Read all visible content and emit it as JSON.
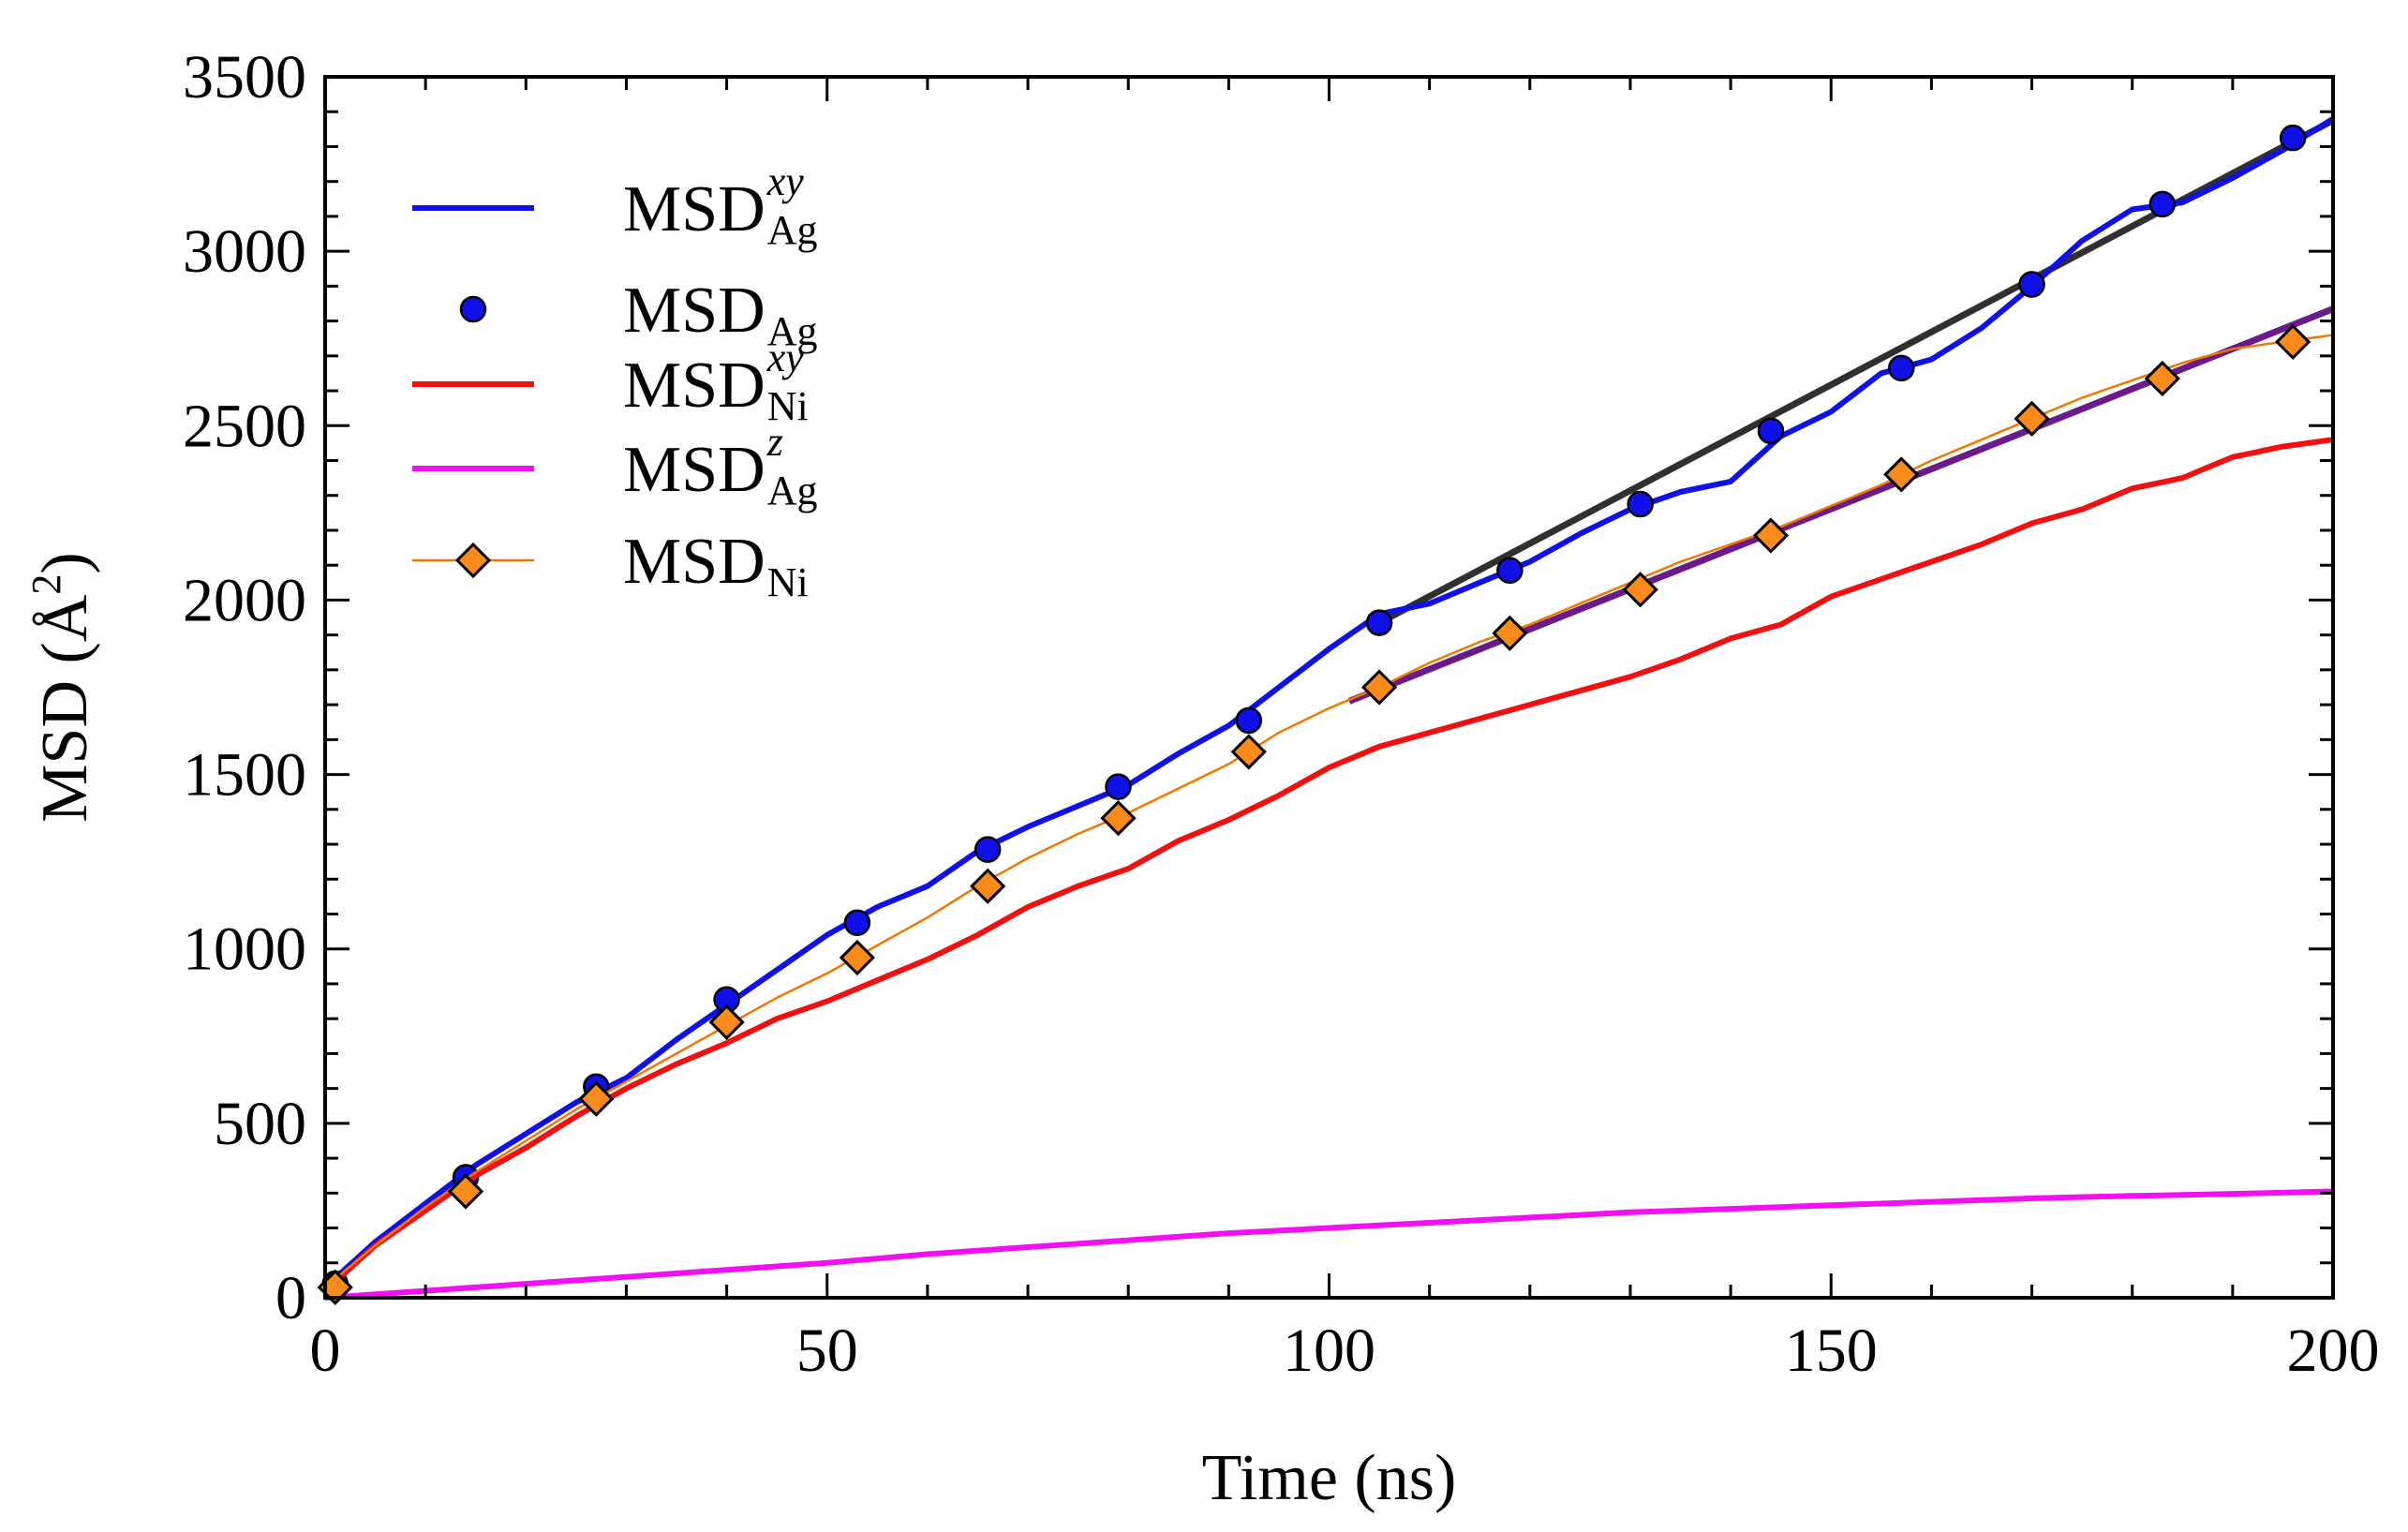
{
  "chart_data": {
    "type": "line",
    "xlabel": "Time (ns)",
    "ylabel": "MSD (Å",
    "ylabel_sup": "2",
    "ylabel_close": ")",
    "xlim": [
      0,
      200
    ],
    "ylim": [
      0,
      3500
    ],
    "x_ticks": [
      0,
      50,
      100,
      150,
      200
    ],
    "y_ticks": [
      0,
      500,
      1000,
      1500,
      2000,
      2500,
      3000,
      3500
    ],
    "x_tick_labels": [
      "0",
      "50",
      "100",
      "150",
      "200"
    ],
    "y_tick_labels": [
      "0",
      "500",
      "1000",
      "1500",
      "2000",
      "2500",
      "3000",
      "3500"
    ],
    "legend_position": "top-left",
    "series": [
      {
        "id": "msd_ag_xy",
        "name": "MSD",
        "sub": "Ag",
        "sup": "xy",
        "style": "line",
        "color": "#1010e8",
        "x": [
          0,
          5,
          10,
          15,
          20,
          25,
          30,
          35,
          40,
          45,
          50,
          55,
          60,
          65,
          70,
          75,
          80,
          85,
          90,
          95,
          100,
          105,
          110,
          115,
          120,
          125,
          130,
          135,
          140,
          145,
          150,
          155,
          160,
          165,
          170,
          175,
          180,
          185,
          190,
          195,
          200
        ],
        "y": [
          30,
          160,
          270,
          380,
          470,
          560,
          630,
          740,
          840,
          940,
          1040,
          1120,
          1180,
          1280,
          1350,
          1410,
          1470,
          1560,
          1640,
          1750,
          1860,
          1960,
          1990,
          2050,
          2110,
          2190,
          2260,
          2310,
          2340,
          2470,
          2540,
          2650,
          2690,
          2780,
          2900,
          3030,
          3120,
          3140,
          3210,
          3290,
          3380
        ]
      },
      {
        "id": "msd_ag",
        "name": "MSD",
        "sub": "Ag",
        "sup": "",
        "style": "markers",
        "marker": "circle",
        "color": "#1010e8",
        "x": [
          1,
          14,
          27,
          40,
          53,
          66,
          79,
          92,
          105,
          118,
          131,
          144,
          157,
          170,
          183,
          196
        ],
        "y": [
          40,
          345,
          605,
          855,
          1075,
          1285,
          1465,
          1655,
          1935,
          2085,
          2275,
          2485,
          2665,
          2905,
          3135,
          3325
        ]
      },
      {
        "id": "msd_ni_xy",
        "name": "MSD",
        "sub": "Ni",
        "sup": "xy",
        "style": "line",
        "color": "#f01010",
        "x": [
          0,
          5,
          10,
          15,
          20,
          25,
          30,
          35,
          40,
          45,
          50,
          55,
          60,
          65,
          70,
          75,
          80,
          85,
          90,
          95,
          100,
          105,
          110,
          115,
          120,
          125,
          130,
          135,
          140,
          145,
          150,
          155,
          160,
          165,
          170,
          175,
          180,
          185,
          190,
          195,
          200
        ],
        "y": [
          20,
          150,
          250,
          350,
          430,
          520,
          600,
          670,
          730,
          800,
          850,
          910,
          970,
          1040,
          1120,
          1180,
          1230,
          1310,
          1370,
          1440,
          1520,
          1580,
          1620,
          1660,
          1700,
          1740,
          1780,
          1830,
          1890,
          1930,
          2010,
          2060,
          2110,
          2160,
          2220,
          2260,
          2320,
          2350,
          2410,
          2440,
          2460
        ]
      },
      {
        "id": "msd_ag_z",
        "name": "MSD",
        "sub": "Ag",
        "sup": "z",
        "style": "line",
        "color": "#f010f0",
        "x": [
          0,
          10,
          20,
          30,
          40,
          50,
          60,
          70,
          80,
          90,
          100,
          110,
          120,
          130,
          140,
          150,
          160,
          170,
          180,
          190,
          200
        ],
        "y": [
          0,
          20,
          40,
          60,
          80,
          100,
          125,
          145,
          165,
          185,
          200,
          215,
          230,
          245,
          255,
          265,
          275,
          285,
          292,
          298,
          305
        ]
      },
      {
        "id": "msd_ni",
        "name": "MSD",
        "sub": "Ni",
        "sup": "",
        "style": "line-markers",
        "marker": "diamond",
        "color": "#f07800",
        "marker_fill": "#f98a1c",
        "x_line": [
          0,
          5,
          10,
          15,
          20,
          25,
          30,
          35,
          40,
          45,
          50,
          55,
          60,
          65,
          70,
          75,
          80,
          85,
          90,
          95,
          100,
          105,
          110,
          115,
          120,
          125,
          130,
          135,
          140,
          145,
          150,
          155,
          160,
          165,
          170,
          175,
          180,
          185,
          190,
          195,
          200
        ],
        "y_line": [
          30,
          150,
          260,
          360,
          450,
          540,
          620,
          700,
          780,
          860,
          930,
          1010,
          1090,
          1180,
          1260,
          1330,
          1390,
          1460,
          1530,
          1620,
          1690,
          1750,
          1820,
          1880,
          1930,
          1990,
          2050,
          2110,
          2160,
          2210,
          2270,
          2330,
          2400,
          2460,
          2520,
          2580,
          2630,
          2680,
          2720,
          2740,
          2760
        ],
        "x": [
          1,
          14,
          27,
          40,
          53,
          66,
          79,
          92,
          105,
          118,
          131,
          144,
          157,
          170,
          183,
          196
        ],
        "y": [
          30,
          305,
          570,
          790,
          975,
          1180,
          1375,
          1565,
          1750,
          1905,
          2030,
          2185,
          2360,
          2520,
          2635,
          2740
        ]
      }
    ],
    "fit_lines": [
      {
        "id": "fit_ag",
        "color": "#303030",
        "x": [
          105,
          200
        ],
        "y": [
          1935,
          3375
        ]
      },
      {
        "id": "fit_ni",
        "color": "#6a1a8a",
        "x": [
          102,
          200
        ],
        "y": [
          1710,
          2835
        ]
      }
    ]
  }
}
